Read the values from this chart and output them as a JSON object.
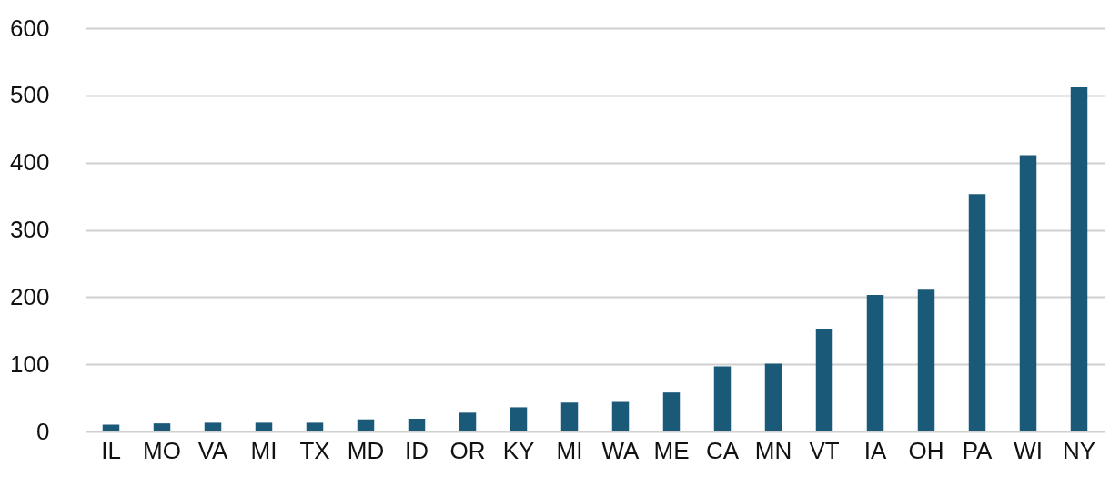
{
  "chart_data": {
    "type": "bar",
    "categories": [
      "IL",
      "MO",
      "VA",
      "MI",
      "TX",
      "MD",
      "ID",
      "OR",
      "KY",
      "MI",
      "WA",
      "ME",
      "CA",
      "MN",
      "VT",
      "IA",
      "OH",
      "PA",
      "WI",
      "NY"
    ],
    "values": [
      10,
      12,
      13,
      13,
      13,
      18,
      19,
      28,
      36,
      43,
      44,
      58,
      97,
      101,
      153,
      203,
      211,
      353,
      411,
      512
    ],
    "color": "#1a5a78",
    "ylim": [
      0,
      600
    ],
    "yticks": [
      0,
      100,
      200,
      300,
      400,
      500,
      600
    ],
    "grid": "y"
  }
}
